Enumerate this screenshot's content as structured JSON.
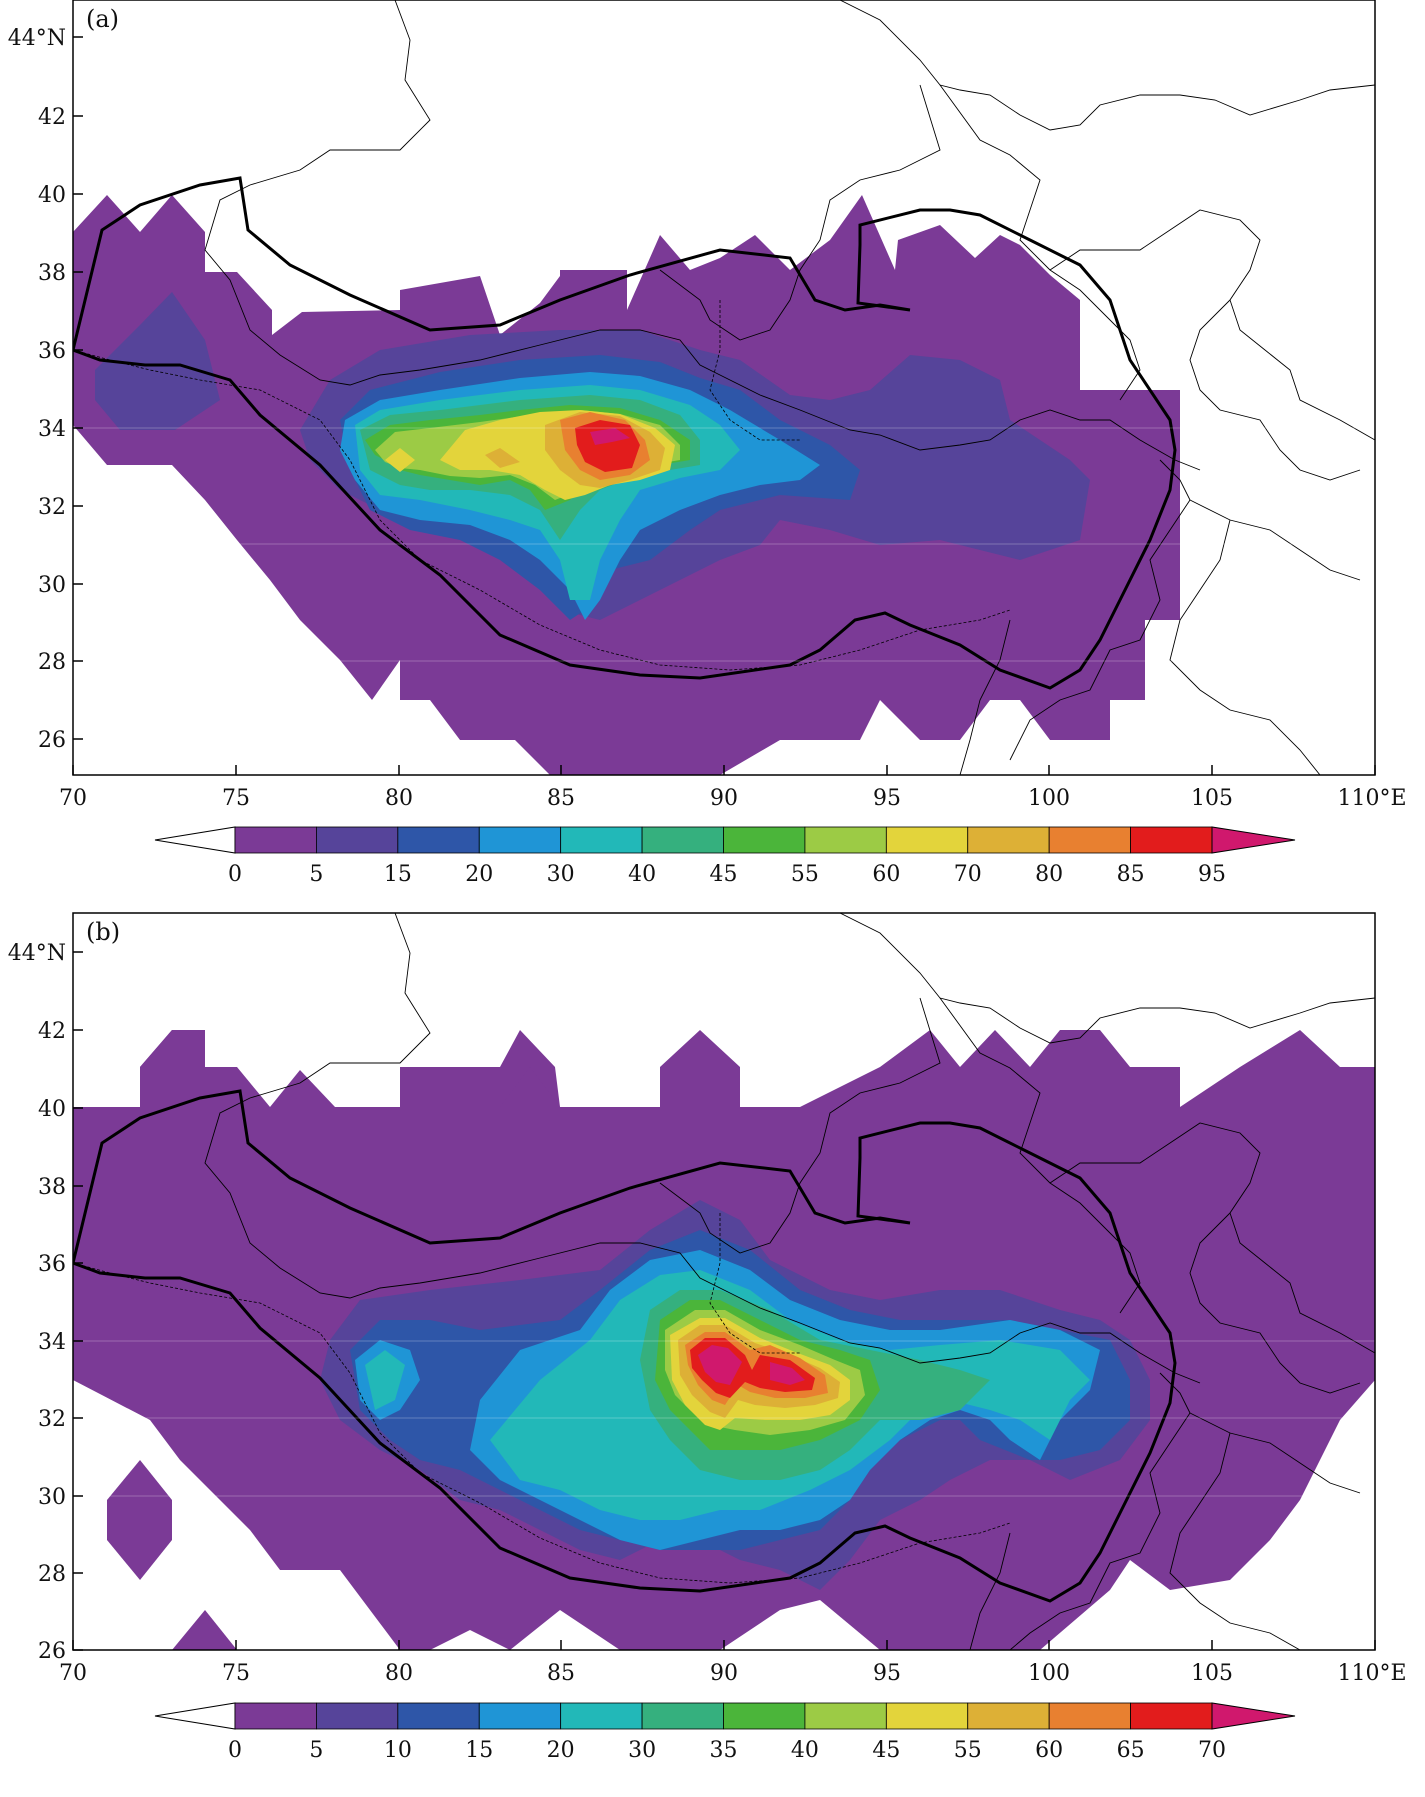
{
  "panels": [
    {
      "label": "(a)",
      "lon_ticks": [
        "70",
        "75",
        "80",
        "85",
        "90",
        "95",
        "100",
        "105",
        "110°E"
      ],
      "lat_ticks": [
        "44°N",
        "42",
        "40",
        "38",
        "36",
        "34",
        "32",
        "30",
        "28",
        "26"
      ],
      "colorbar": {
        "labels": [
          "0",
          "5",
          "15",
          "20",
          "30",
          "40",
          "45",
          "55",
          "60",
          "70",
          "80",
          "85",
          "95"
        ]
      }
    },
    {
      "label": "(b)",
      "lon_ticks": [
        "70",
        "75",
        "80",
        "85",
        "90",
        "95",
        "100",
        "105",
        "110°E"
      ],
      "lat_ticks": [
        "44°N",
        "42",
        "40",
        "38",
        "36",
        "34",
        "32",
        "30",
        "28",
        "26"
      ],
      "colorbar": {
        "labels": [
          "0",
          "5",
          "10",
          "15",
          "20",
          "30",
          "35",
          "40",
          "45",
          "55",
          "60",
          "65",
          "70"
        ]
      }
    }
  ],
  "colors": {
    "below": "#ffffff",
    "levels": [
      "#7b3a96",
      "#56449a",
      "#2e56a8",
      "#1f95d6",
      "#22b8b8",
      "#35b07e",
      "#4bb53a",
      "#9ccb45",
      "#e3d43b",
      "#ddb036",
      "#e88030",
      "#e21c1c",
      "#d0186d"
    ],
    "boundary": "#000000"
  }
}
